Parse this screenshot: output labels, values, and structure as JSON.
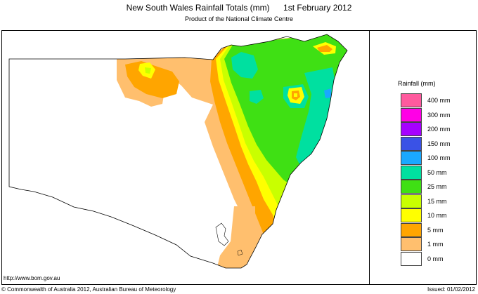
{
  "header": {
    "title": "New South Wales Rainfall Totals (mm)",
    "date": "1st February 2012",
    "subtitle": "Product of the National Climate Centre"
  },
  "legend": {
    "title": "Rainfall (mm)",
    "items": [
      {
        "label": "400 mm",
        "color": "#ff5a9e"
      },
      {
        "label": "300 mm",
        "color": "#ff00e6"
      },
      {
        "label": "200 mm",
        "color": "#a600ff"
      },
      {
        "label": "150 mm",
        "color": "#3a52e6"
      },
      {
        "label": "100 mm",
        "color": "#1aa8ff"
      },
      {
        "label": "50 mm",
        "color": "#00e0a0"
      },
      {
        "label": "25 mm",
        "color": "#3fe014"
      },
      {
        "label": "15 mm",
        "color": "#c9ff00"
      },
      {
        "label": "10 mm",
        "color": "#ffff00"
      },
      {
        "label": "5 mm",
        "color": "#ffa500"
      },
      {
        "label": "1 mm",
        "color": "#ffbf6e"
      },
      {
        "label": "0 mm",
        "color": "#ffffff"
      }
    ]
  },
  "footer": {
    "website": "http://www.bom.gov.au",
    "copyright": "© Commonwealth of Australia 2012, Australian Bureau of Meteorology",
    "issued": "Issued: 01/02/2012"
  }
}
